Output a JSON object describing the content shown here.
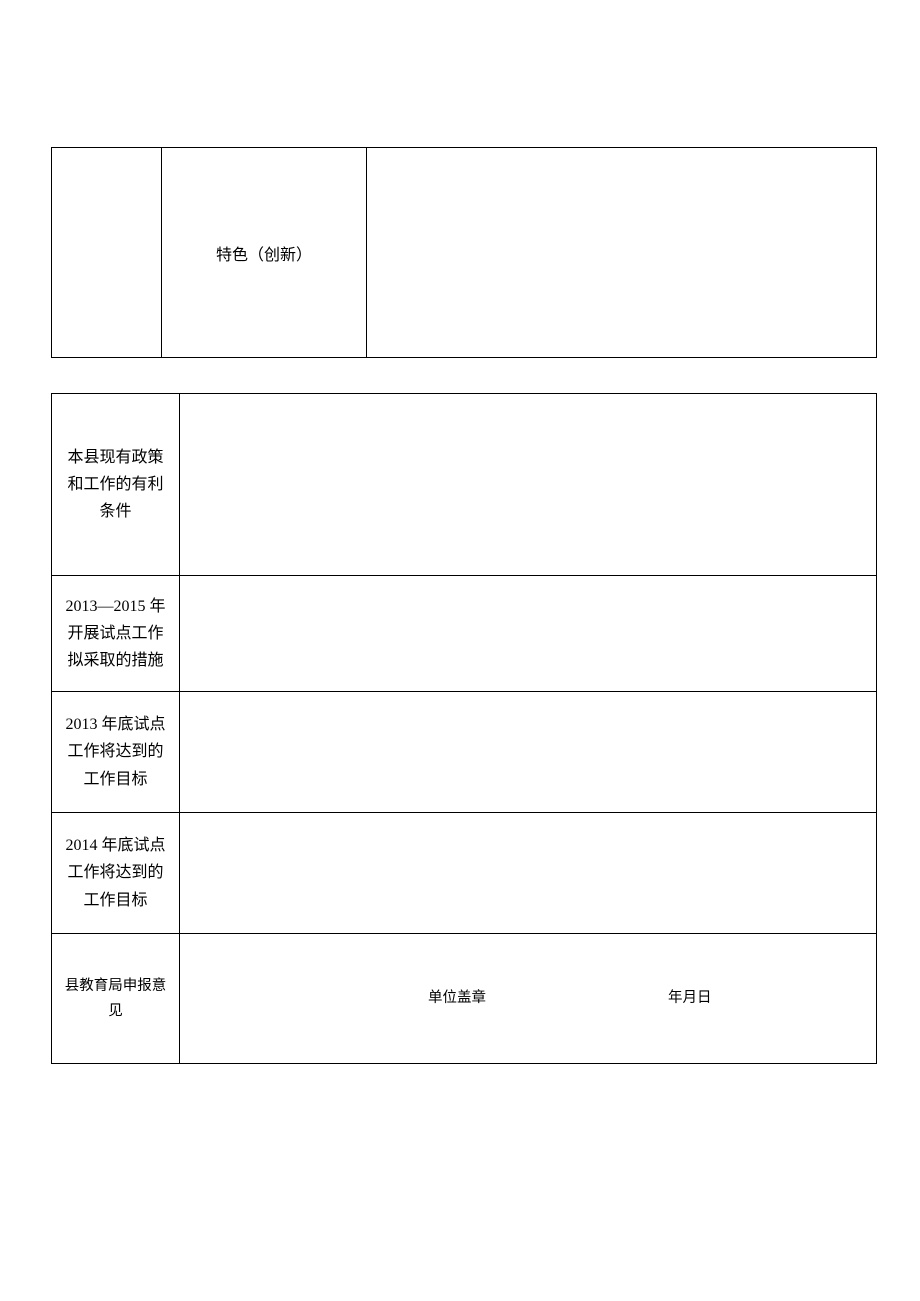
{
  "table1": {
    "col2_label": "特色（创新）"
  },
  "table2": {
    "row1_label": "本县现有政策和工作的有利条件",
    "row2_label": "2013—2015 年开展试点工作拟采取的措施",
    "row3_label": "2013 年底试点工作将达到的工作目标",
    "row4_label": "2014 年底试点工作将达到的工作目标",
    "row5_label": "县教育局申报意见",
    "row5_stamp": "单位盖章",
    "row5_date": "年月日"
  },
  "colors": {
    "border": "#000000",
    "background": "#ffffff",
    "text": "#000000"
  },
  "font": {
    "family": "SimSun",
    "size_body": 16,
    "size_small": 14.5
  }
}
